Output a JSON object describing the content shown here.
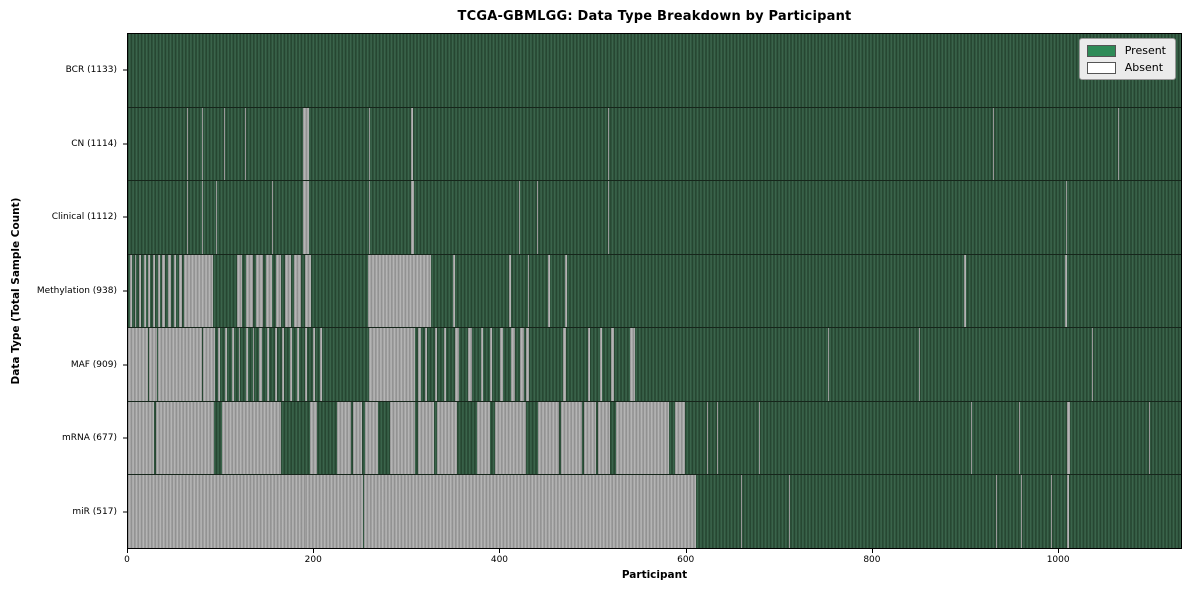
{
  "title": "TCGA-GBMLGG: Data Type Breakdown by Participant",
  "axes": {
    "xlabel": "Participant",
    "ylabel": "Data Type (Total Sample Count)",
    "x_ticks": [
      "0",
      "200",
      "400",
      "600",
      "800",
      "1000"
    ]
  },
  "legend": {
    "items": [
      {
        "label": "Present",
        "color": "#2e8b57"
      },
      {
        "label": "Absent",
        "color": "#ffffff"
      }
    ]
  },
  "colors": {
    "present_mid": "#2e5c43",
    "present_light": "#3e6a50",
    "present_dark": "#22402c",
    "absent_light": "#bcbcbc",
    "absent_dark": "#8a8a8a",
    "legend_bg": "#ebebeb",
    "legend_border": "#999999"
  },
  "chart_data": {
    "type": "heatmap",
    "title": "TCGA-GBMLGG: Data Type Breakdown by Participant",
    "xlabel": "Participant",
    "ylabel": "Data Type (Total Sample Count)",
    "x_tick_values": [
      0,
      200,
      400,
      600,
      800,
      1000
    ],
    "n_participants": 1133,
    "states": [
      "Present",
      "Absent"
    ],
    "legend_position": "upper right",
    "rows": [
      {
        "data_type": "BCR",
        "label": "BCR (1133)",
        "present_count": 1133,
        "absent_ranges": []
      },
      {
        "data_type": "CN",
        "label": "CN (1114)",
        "present_count": 1114,
        "absent_ranges": [
          [
            63,
            64
          ],
          [
            80,
            81
          ],
          [
            103,
            104
          ],
          [
            126,
            127
          ],
          [
            188,
            195
          ],
          [
            259,
            260
          ],
          [
            304,
            307
          ],
          [
            516,
            517
          ],
          [
            931,
            932
          ],
          [
            1065,
            1066
          ]
        ]
      },
      {
        "data_type": "Clinical",
        "label": "Clinical (1112)",
        "present_count": 1112,
        "absent_ranges": [
          [
            63,
            64
          ],
          [
            80,
            81
          ],
          [
            95,
            96
          ],
          [
            155,
            156
          ],
          [
            188,
            195
          ],
          [
            259,
            260
          ],
          [
            304,
            308
          ],
          [
            421,
            422
          ],
          [
            440,
            441
          ],
          [
            516,
            517
          ],
          [
            1009,
            1010
          ]
        ]
      },
      {
        "data_type": "Methylation",
        "label": "Methylation (938)",
        "present_count": 938,
        "absent_ranges": [
          [
            2,
            4
          ],
          [
            7,
            9
          ],
          [
            12,
            14
          ],
          [
            17,
            19
          ],
          [
            22,
            24
          ],
          [
            27,
            29
          ],
          [
            32,
            34
          ],
          [
            37,
            40
          ],
          [
            43,
            46
          ],
          [
            49,
            52
          ],
          [
            55,
            58
          ],
          [
            60,
            92
          ],
          [
            117,
            123
          ],
          [
            127,
            134
          ],
          [
            138,
            145
          ],
          [
            149,
            155
          ],
          [
            159,
            165
          ],
          [
            169,
            175
          ],
          [
            179,
            186
          ],
          [
            190,
            197
          ],
          [
            258,
            326
          ],
          [
            350,
            352
          ],
          [
            410,
            412
          ],
          [
            430,
            432
          ],
          [
            452,
            454
          ],
          [
            470,
            472
          ],
          [
            900,
            902
          ],
          [
            1008,
            1010
          ]
        ]
      },
      {
        "data_type": "MAF",
        "label": "MAF (909)",
        "present_count": 909,
        "absent_ranges": [
          [
            0,
            22
          ],
          [
            23,
            31
          ],
          [
            32,
            80
          ],
          [
            81,
            94
          ],
          [
            97,
            99
          ],
          [
            104,
            107
          ],
          [
            112,
            114
          ],
          [
            119,
            121
          ],
          [
            127,
            129
          ],
          [
            134,
            136
          ],
          [
            141,
            144
          ],
          [
            150,
            152
          ],
          [
            158,
            160
          ],
          [
            166,
            168
          ],
          [
            174,
            176
          ],
          [
            182,
            184
          ],
          [
            190,
            193
          ],
          [
            199,
            201
          ],
          [
            207,
            209
          ],
          [
            259,
            309
          ],
          [
            312,
            315
          ],
          [
            320,
            322
          ],
          [
            330,
            333
          ],
          [
            340,
            342
          ],
          [
            352,
            356
          ],
          [
            366,
            370
          ],
          [
            380,
            382
          ],
          [
            390,
            392
          ],
          [
            400,
            404
          ],
          [
            412,
            416
          ],
          [
            422,
            426
          ],
          [
            428,
            431
          ],
          [
            468,
            471
          ],
          [
            495,
            497
          ],
          [
            508,
            510
          ],
          [
            520,
            523
          ],
          [
            540,
            545
          ],
          [
            753,
            754
          ],
          [
            851,
            852
          ],
          [
            1037,
            1038
          ]
        ]
      },
      {
        "data_type": "mRNA",
        "label": "mRNA (677)",
        "present_count": 677,
        "absent_ranges": [
          [
            0,
            28
          ],
          [
            30,
            93
          ],
          [
            101,
            165
          ],
          [
            196,
            203
          ],
          [
            225,
            240
          ],
          [
            242,
            252
          ],
          [
            255,
            269
          ],
          [
            282,
            309
          ],
          [
            312,
            329
          ],
          [
            332,
            354
          ],
          [
            376,
            389
          ],
          [
            395,
            428
          ],
          [
            441,
            464
          ],
          [
            466,
            489
          ],
          [
            491,
            504
          ],
          [
            506,
            519
          ],
          [
            525,
            582
          ],
          [
            589,
            599
          ],
          [
            623,
            624
          ],
          [
            634,
            635
          ],
          [
            679,
            680
          ],
          [
            907,
            908
          ],
          [
            959,
            960
          ],
          [
            1010,
            1014
          ],
          [
            1099,
            1100
          ]
        ]
      },
      {
        "data_type": "miR",
        "label": "miR (517)",
        "present_count": 517,
        "absent_ranges": [
          [
            0,
            191
          ],
          [
            192,
            253
          ],
          [
            254,
            611
          ],
          [
            660,
            661
          ],
          [
            711,
            712
          ],
          [
            934,
            935
          ],
          [
            961,
            962
          ],
          [
            993,
            994
          ],
          [
            1010,
            1012
          ]
        ]
      }
    ]
  }
}
